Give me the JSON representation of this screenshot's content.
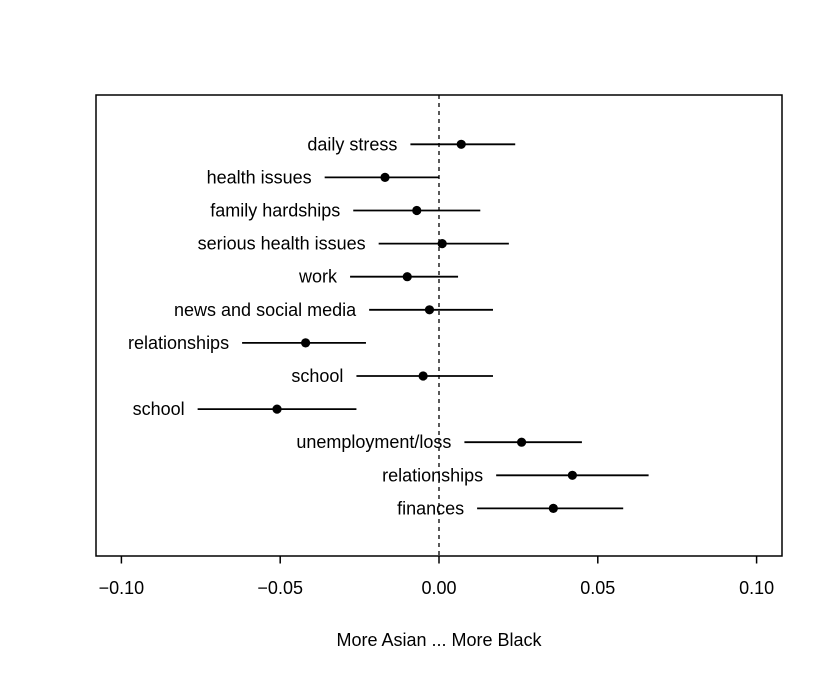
{
  "figure": {
    "background": "#ffffff",
    "ink_color": "#000000"
  },
  "chart_data": {
    "type": "scatter",
    "style": "forest-dotplot-with-ci-whiskers",
    "title": "",
    "xlabel": "More Asian ... More Black",
    "ylabel": "",
    "xlim": [
      -0.108,
      0.108
    ],
    "x_ticks": [
      -0.1,
      -0.05,
      0.0,
      0.05,
      0.1
    ],
    "x_tick_labels": [
      "−0.10",
      "−0.05",
      "0.00",
      "0.05",
      "0.10"
    ],
    "zero_line": {
      "x": 0.0,
      "style": "dashed"
    },
    "grid": false,
    "legend": "none",
    "rows": [
      {
        "label": "daily stress",
        "estimate": 0.007,
        "ci_low": -0.009,
        "ci_high": 0.024
      },
      {
        "label": "health issues",
        "estimate": -0.017,
        "ci_low": -0.036,
        "ci_high": 0.0
      },
      {
        "label": "family hardships",
        "estimate": -0.007,
        "ci_low": -0.027,
        "ci_high": 0.013
      },
      {
        "label": "serious health issues",
        "estimate": 0.001,
        "ci_low": -0.019,
        "ci_high": 0.022
      },
      {
        "label": "work",
        "estimate": -0.01,
        "ci_low": -0.028,
        "ci_high": 0.006
      },
      {
        "label": "news and social media",
        "estimate": -0.003,
        "ci_low": -0.022,
        "ci_high": 0.017
      },
      {
        "label": "relationships",
        "estimate": -0.042,
        "ci_low": -0.062,
        "ci_high": -0.023
      },
      {
        "label": "school",
        "estimate": -0.005,
        "ci_low": -0.026,
        "ci_high": 0.017
      },
      {
        "label": "school",
        "estimate": -0.051,
        "ci_low": -0.076,
        "ci_high": -0.026
      },
      {
        "label": "unemployment/loss",
        "estimate": 0.026,
        "ci_low": 0.008,
        "ci_high": 0.045
      },
      {
        "label": "relationships",
        "estimate": 0.042,
        "ci_low": 0.018,
        "ci_high": 0.066
      },
      {
        "label": "finances",
        "estimate": 0.036,
        "ci_low": 0.012,
        "ci_high": 0.058
      }
    ]
  }
}
